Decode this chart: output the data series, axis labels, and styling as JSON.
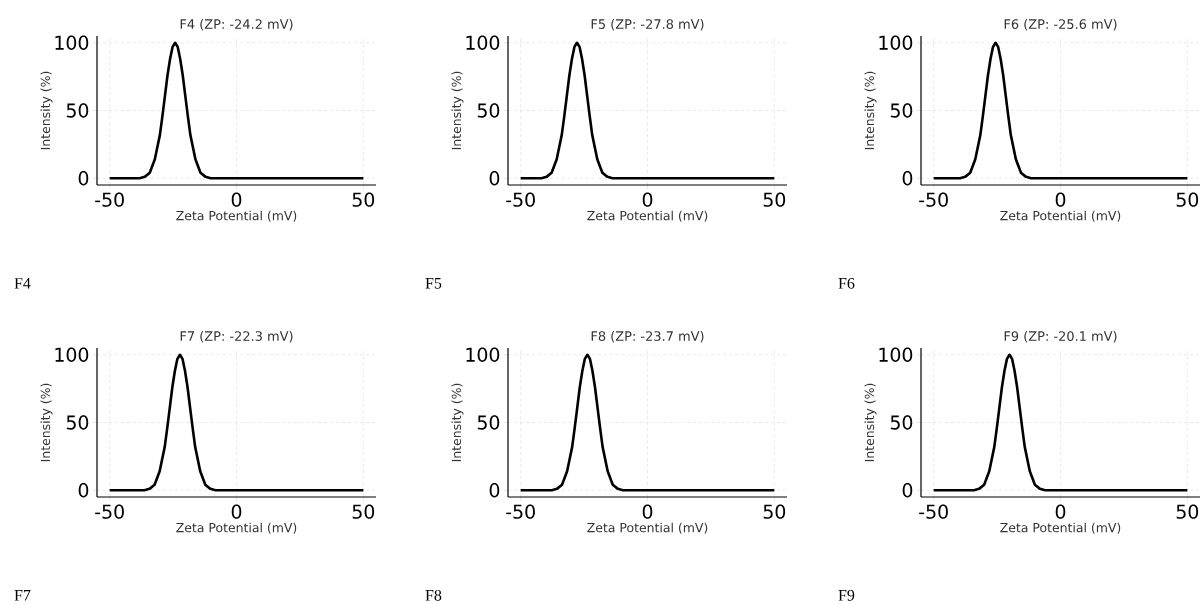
{
  "chart_data": [
    {
      "type": "line",
      "title": "F4 (ZP: -24.2 mV)",
      "xlabel": "Zeta Potential (mV)",
      "ylabel": "Intensity (%)",
      "color": "#000000",
      "xlim": [
        -55,
        55
      ],
      "ylim": [
        -5,
        105
      ],
      "xticks": [
        -50,
        0,
        50
      ],
      "yticks": [
        0,
        50,
        100
      ],
      "grid": true,
      "annotations": [
        "F4"
      ],
      "x": [
        -50,
        -38.2,
        -36.2,
        -34.2,
        -32.2,
        -30.2,
        -29.2,
        -28.2,
        -27.2,
        -26.2,
        -25.2,
        -24.2,
        -23.2,
        -22.2,
        -21.2,
        -20.2,
        -19.2,
        -18.2,
        -16.2,
        -14.2,
        -12.2,
        -10.2,
        50
      ],
      "values": [
        0,
        0,
        1,
        4,
        14,
        32,
        46,
        61,
        76,
        88,
        97,
        100,
        97,
        88,
        76,
        61,
        46,
        32,
        14,
        4,
        1,
        0,
        0
      ]
    },
    {
      "type": "line",
      "title": "F5 (ZP: -27.8 mV)",
      "xlabel": "Zeta Potential (mV)",
      "ylabel": "Intensity (%)",
      "color": "#000000",
      "xlim": [
        -55,
        55
      ],
      "ylim": [
        -5,
        105
      ],
      "xticks": [
        -50,
        0,
        50
      ],
      "yticks": [
        0,
        50,
        100
      ],
      "grid": true,
      "annotations": [
        "F5"
      ],
      "x": [
        -50,
        -41.8,
        -39.8,
        -37.8,
        -35.8,
        -33.8,
        -32.8,
        -31.8,
        -30.8,
        -29.8,
        -28.8,
        -27.8,
        -26.8,
        -25.8,
        -24.8,
        -23.8,
        -22.8,
        -21.8,
        -19.8,
        -17.8,
        -15.8,
        -13.8,
        50
      ],
      "values": [
        0,
        0,
        1,
        4,
        14,
        32,
        46,
        61,
        76,
        88,
        97,
        100,
        97,
        88,
        76,
        61,
        46,
        32,
        14,
        4,
        1,
        0,
        0
      ]
    },
    {
      "type": "line",
      "title": "F6 (ZP: -25.6 mV)",
      "xlabel": "Zeta Potential (mV)",
      "ylabel": "Intensity (%)",
      "color": "#000000",
      "xlim": [
        -55,
        55
      ],
      "ylim": [
        -5,
        105
      ],
      "xticks": [
        -50,
        0,
        50
      ],
      "yticks": [
        0,
        50,
        100
      ],
      "grid": true,
      "annotations": [
        "F6"
      ],
      "x": [
        -50,
        -39.6,
        -37.6,
        -35.6,
        -33.6,
        -31.6,
        -30.6,
        -29.6,
        -28.6,
        -27.6,
        -26.6,
        -25.6,
        -24.6,
        -23.6,
        -22.6,
        -21.6,
        -20.6,
        -19.6,
        -17.6,
        -15.6,
        -13.6,
        -11.6,
        50
      ],
      "values": [
        0,
        0,
        1,
        4,
        14,
        32,
        46,
        61,
        76,
        88,
        97,
        100,
        97,
        88,
        76,
        61,
        46,
        32,
        14,
        4,
        1,
        0,
        0
      ]
    },
    {
      "type": "line",
      "title": "F7 (ZP: -22.3 mV)",
      "xlabel": "Zeta Potential (mV)",
      "ylabel": "Intensity (%)",
      "color": "#000000",
      "xlim": [
        -55,
        55
      ],
      "ylim": [
        -5,
        105
      ],
      "xticks": [
        -50,
        0,
        50
      ],
      "yticks": [
        0,
        50,
        100
      ],
      "grid": true,
      "annotations": [
        "F7"
      ],
      "x": [
        -50,
        -36.3,
        -34.3,
        -32.3,
        -30.3,
        -28.3,
        -27.3,
        -26.3,
        -25.3,
        -24.3,
        -23.3,
        -22.3,
        -21.3,
        -20.3,
        -19.3,
        -18.3,
        -17.3,
        -16.3,
        -14.3,
        -12.3,
        -10.3,
        -8.3,
        50
      ],
      "values": [
        0,
        0,
        1,
        4,
        14,
        32,
        46,
        61,
        76,
        88,
        97,
        100,
        97,
        88,
        76,
        61,
        46,
        32,
        14,
        4,
        1,
        0,
        0
      ]
    },
    {
      "type": "line",
      "title": "F8 (ZP: -23.7 mV)",
      "xlabel": "Zeta Potential (mV)",
      "ylabel": "Intensity (%)",
      "color": "#000000",
      "xlim": [
        -55,
        55
      ],
      "ylim": [
        -5,
        105
      ],
      "xticks": [
        -50,
        0,
        50
      ],
      "yticks": [
        0,
        50,
        100
      ],
      "grid": true,
      "annotations": [
        "F8"
      ],
      "x": [
        -50,
        -37.7,
        -35.7,
        -33.7,
        -31.7,
        -29.7,
        -28.7,
        -27.7,
        -26.7,
        -25.7,
        -24.7,
        -23.7,
        -22.7,
        -21.7,
        -20.7,
        -19.7,
        -18.7,
        -17.7,
        -15.7,
        -13.7,
        -11.7,
        -9.7,
        50
      ],
      "values": [
        0,
        0,
        1,
        4,
        14,
        32,
        46,
        61,
        76,
        88,
        97,
        100,
        97,
        88,
        76,
        61,
        46,
        32,
        14,
        4,
        1,
        0,
        0
      ]
    },
    {
      "type": "line",
      "title": "F9 (ZP: -20.1 mV)",
      "xlabel": "Zeta Potential (mV)",
      "ylabel": "Intensity (%)",
      "color": "#000000",
      "xlim": [
        -55,
        55
      ],
      "ylim": [
        -5,
        105
      ],
      "xticks": [
        -50,
        0,
        50
      ],
      "yticks": [
        0,
        50,
        100
      ],
      "grid": true,
      "annotations": [
        "F9"
      ],
      "x": [
        -50,
        -34.1,
        -32.1,
        -30.1,
        -28.1,
        -26.1,
        -25.1,
        -24.1,
        -23.1,
        -22.1,
        -21.1,
        -20.1,
        -19.1,
        -18.1,
        -17.1,
        -16.1,
        -15.1,
        -14.1,
        -12.1,
        -10.1,
        -8.1,
        -6.1,
        50
      ],
      "values": [
        0,
        0,
        1,
        4,
        14,
        32,
        46,
        61,
        76,
        88,
        97,
        100,
        97,
        88,
        76,
        61,
        46,
        32,
        14,
        4,
        1,
        0,
        0
      ]
    }
  ]
}
